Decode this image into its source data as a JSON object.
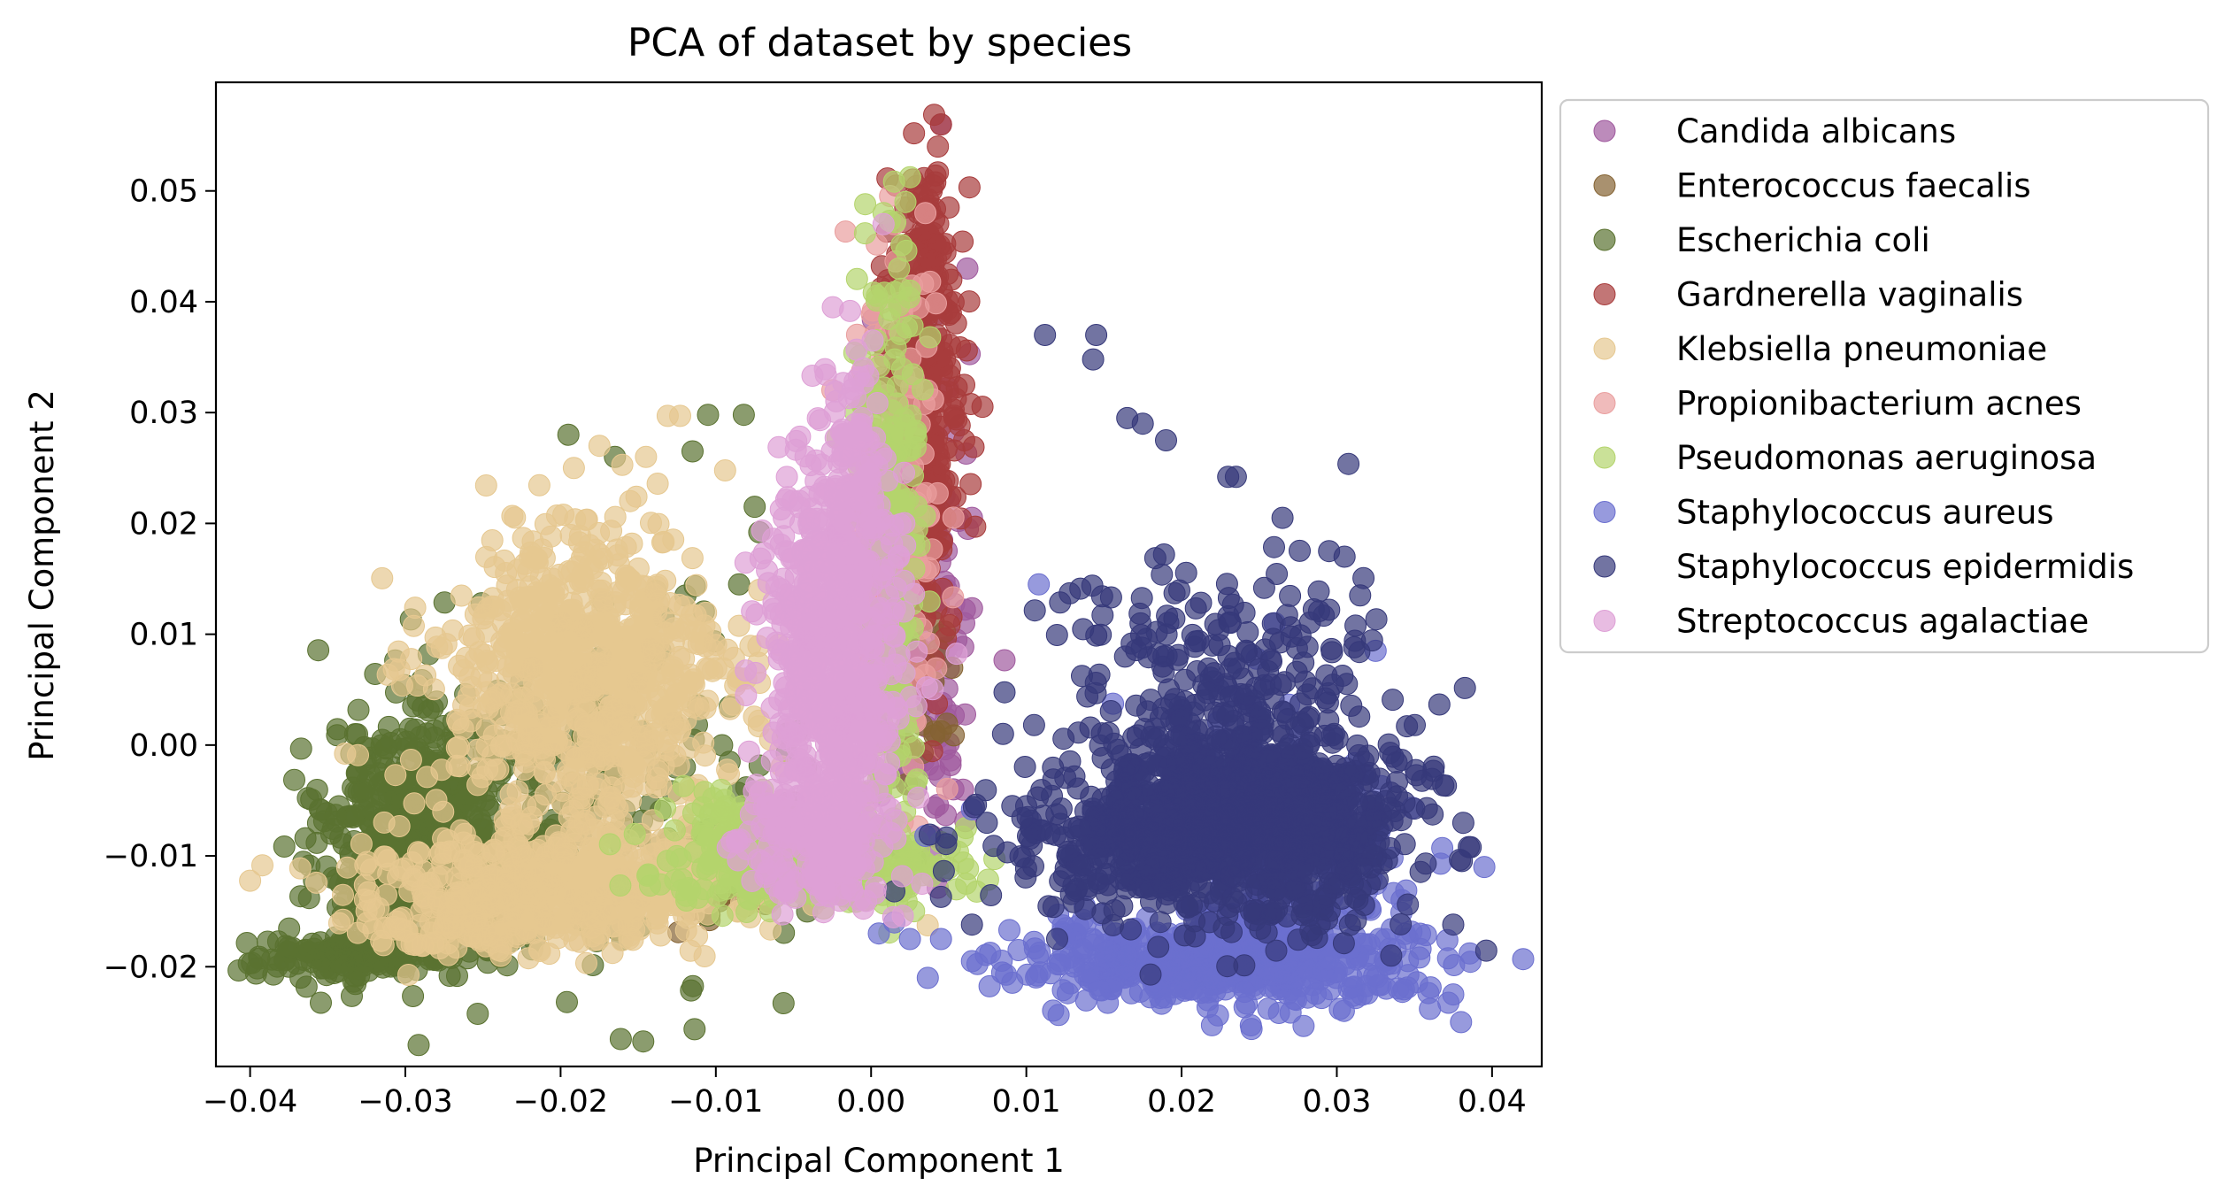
{
  "chart_data": {
    "type": "scatter",
    "title": "PCA of dataset by species",
    "xlabel": "Principal Component 1",
    "ylabel": "Principal Component 2",
    "xlim": [
      -0.0422,
      0.0432
    ],
    "ylim": [
      -0.029,
      0.0598
    ],
    "xticks": [
      -0.04,
      -0.03,
      -0.02,
      -0.01,
      0.0,
      0.01,
      0.02,
      0.03,
      0.04
    ],
    "xtick_labels": [
      "−0.04",
      "−0.03",
      "−0.02",
      "−0.01",
      "0.00",
      "0.01",
      "0.02",
      "0.03",
      "0.04"
    ],
    "yticks": [
      -0.02,
      -0.01,
      0.0,
      0.01,
      0.02,
      0.03,
      0.04,
      0.05
    ],
    "ytick_labels": [
      "−0.02",
      "−0.01",
      "0.00",
      "0.01",
      "0.02",
      "0.03",
      "0.04",
      "0.05"
    ],
    "grid": false,
    "legend_position": "outside-right-top",
    "marker_alpha": 0.7,
    "series": [
      {
        "name": "Candida albicans",
        "color": "#a05a9e",
        "clusters": [
          {
            "c": [
              0.0035,
              0.015
            ],
            "sd": [
              0.0014,
              0.012
            ],
            "n": 110
          },
          {
            "c": [
              0.0028,
              0.003
            ],
            "sd": [
              0.0018,
              0.006
            ],
            "n": 40
          }
        ],
        "points": [
          [
            0.0045,
            0.056
          ],
          [
            0.0062,
            0.043
          ],
          [
            0.0065,
            0.0205
          ],
          [
            0.0053,
            -0.004
          ],
          [
            0.0055,
            0.0095
          ],
          [
            0.006,
            0.011
          ]
        ]
      },
      {
        "name": "Enterococcus faecalis",
        "color": "#846232",
        "clusters": [
          {
            "c": [
              -0.0095,
              -0.013
            ],
            "sd": [
              0.0025,
              0.0015
            ],
            "n": 30
          },
          {
            "c": [
              0.0032,
              0.005
            ],
            "sd": [
              0.0012,
              0.004
            ],
            "n": 35
          }
        ],
        "points": [
          [
            -0.0112,
            -0.0133
          ],
          [
            -0.0095,
            -0.0134
          ],
          [
            0.0028,
            0.0065
          ],
          [
            0.0035,
            0.0075
          ]
        ]
      },
      {
        "name": "Escherichia coli",
        "color": "#5a7230",
        "clusters": [
          {
            "c": [
              -0.0285,
              -0.009
            ],
            "sd": [
              0.0032,
              0.0055
            ],
            "n": 620
          },
          {
            "c": [
              -0.033,
              -0.019
            ],
            "sd": [
              0.0035,
              0.001
            ],
            "n": 140
          },
          {
            "c": [
              -0.019,
              -0.005
            ],
            "sd": [
              0.0075,
              0.008
            ],
            "n": 240
          }
        ],
        "points": [
          [
            -0.0385,
            -0.0207
          ],
          [
            -0.0375,
            -0.02
          ],
          [
            -0.0195,
            0.028
          ],
          [
            -0.0105,
            0.0298
          ],
          [
            -0.0082,
            0.0298
          ],
          [
            -0.0115,
            0.0265
          ],
          [
            -0.0075,
            0.0215
          ],
          [
            -0.0285,
            0.0082
          ],
          [
            -0.0295,
            0.0035
          ],
          [
            -0.0355,
            -0.0058
          ],
          [
            -0.0345,
            -0.0063
          ],
          [
            -0.0362,
            -0.0138
          ],
          [
            -0.0085,
            0.0145
          ],
          [
            -0.0072,
            0.0192
          ],
          [
            -0.0165,
            0.026
          ]
        ]
      },
      {
        "name": "Gardnerella vaginalis",
        "color": "#a83c3c",
        "clusters": [
          {
            "c": [
              0.0032,
              0.027
            ],
            "sd": [
              0.0013,
              0.009
            ],
            "n": 380
          },
          {
            "c": [
              0.0035,
              0.044
            ],
            "sd": [
              0.0009,
              0.0045
            ],
            "n": 80
          }
        ],
        "points": [
          [
            0.0045,
            0.056
          ],
          [
            0.0043,
            0.054
          ],
          [
            0.004,
            0.0505
          ],
          [
            0.005,
            0.0485
          ],
          [
            0.006,
            0.0325
          ],
          [
            0.006,
            0.0275
          ],
          [
            0.0022,
            0.0485
          ],
          [
            0.0038,
            0.0482
          ]
        ]
      },
      {
        "name": "Klebsiella pneumoniae",
        "color": "#e6c890",
        "clusters": [
          {
            "c": [
              -0.0185,
              0.006
            ],
            "sd": [
              0.0048,
              0.0068
            ],
            "n": 780
          },
          {
            "c": [
              -0.0195,
              -0.0125
            ],
            "sd": [
              0.0062,
              0.0028
            ],
            "n": 560
          },
          {
            "c": [
              -0.0265,
              -0.0165
            ],
            "sd": [
              0.0028,
              0.0012
            ],
            "n": 80
          }
        ],
        "points": [
          [
            -0.0131,
            0.0297
          ],
          [
            -0.0123,
            0.0297
          ],
          [
            -0.0145,
            0.026
          ],
          [
            -0.0175,
            0.027
          ],
          [
            -0.0228,
            0.014
          ],
          [
            -0.0084,
            0.006
          ],
          [
            -0.0065,
            0.0005
          ],
          [
            -0.0072,
            0.014
          ],
          [
            -0.024,
            -0.0185
          ],
          [
            -0.028,
            -0.0178
          ]
        ]
      },
      {
        "name": "Propionibacterium acnes",
        "color": "#e99e9e",
        "clusters": [
          {
            "c": [
              0.0015,
              0.022
            ],
            "sd": [
              0.0016,
              0.012
            ],
            "n": 130
          }
        ],
        "points": [
          [
            0.0015,
            0.047
          ],
          [
            0.0035,
            0.048
          ],
          [
            0.002,
            0.039
          ],
          [
            0.0038,
            0.0418
          ],
          [
            -0.0015,
            0.014
          ],
          [
            0.0005,
            0.01
          ],
          [
            0.003,
            0.007
          ]
        ]
      },
      {
        "name": "Pseudomonas aeruginosa",
        "color": "#b4d46c",
        "clusters": [
          {
            "c": [
              0.0012,
              0.017
            ],
            "sd": [
              0.0012,
              0.013
            ],
            "n": 260
          },
          {
            "c": [
              -0.004,
              -0.0105
            ],
            "sd": [
              0.0045,
              0.0018
            ],
            "n": 300
          },
          {
            "c": [
              -0.0085,
              -0.0075
            ],
            "sd": [
              0.0022,
              0.0018
            ],
            "n": 60
          }
        ],
        "points": [
          [
            0.0008,
            0.048
          ],
          [
            0.0012,
            0.0473
          ],
          [
            0.0018,
            0.043
          ],
          [
            0.0025,
            0.041
          ],
          [
            0.0038,
            0.0368
          ],
          [
            0.004,
            -0.011
          ],
          [
            0.0045,
            -0.0108
          ],
          [
            -0.0065,
            -0.015
          ],
          [
            -0.0108,
            -0.013
          ]
        ]
      },
      {
        "name": "Staphylococcus aureus",
        "color": "#6b6fcf",
        "clusters": [
          {
            "c": [
              0.022,
              -0.0195
            ],
            "sd": [
              0.0065,
              0.0018
            ],
            "n": 500
          },
          {
            "c": [
              0.0275,
              -0.011
            ],
            "sd": [
              0.004,
              0.006
            ],
            "n": 180
          }
        ],
        "points": [
          [
            0.0015,
            -0.016
          ],
          [
            0.0025,
            -0.0175
          ],
          [
            0.0005,
            -0.017
          ],
          [
            0.0045,
            -0.0175
          ],
          [
            0.0065,
            -0.0195
          ],
          [
            0.0095,
            -0.0185
          ],
          [
            0.0375,
            -0.0225
          ],
          [
            0.038,
            -0.025
          ],
          [
            0.036,
            -0.0238
          ],
          [
            0.0395,
            -0.011
          ],
          [
            0.0325,
            0.0085
          ],
          [
            0.026,
            0.011
          ],
          [
            0.0108,
            0.0145
          ],
          [
            0.0065,
            -0.0058
          ],
          [
            0.0035,
            -0.0082
          ]
        ]
      },
      {
        "name": "Staphylococcus epidermidis",
        "color": "#36397a",
        "clusters": [
          {
            "c": [
              0.0245,
              -0.0075
            ],
            "sd": [
              0.0048,
              0.0042
            ],
            "n": 950
          },
          {
            "c": [
              0.0225,
              0.0035
            ],
            "sd": [
              0.0055,
              0.0062
            ],
            "n": 300
          },
          {
            "c": [
              0.014,
              -0.009
            ],
            "sd": [
              0.0035,
              0.003
            ],
            "n": 160
          }
        ],
        "points": [
          [
            0.0112,
            0.037
          ],
          [
            0.0143,
            0.0348
          ],
          [
            0.0145,
            0.037
          ],
          [
            0.0165,
            0.0295
          ],
          [
            0.0175,
            0.029
          ],
          [
            0.023,
            0.0242
          ],
          [
            0.0235,
            0.0242
          ],
          [
            0.0385,
            -0.0092
          ],
          [
            0.0375,
            -0.0162
          ],
          [
            0.0335,
            -0.019
          ],
          [
            0.0045,
            -0.0137
          ],
          [
            0.0015,
            -0.0132
          ],
          [
            0.0105,
            0.0018
          ],
          [
            0.0085,
            0.001
          ],
          [
            0.0065,
            -0.0162
          ],
          [
            0.018,
            -0.0207
          ],
          [
            0.0265,
            0.0205
          ],
          [
            0.0295,
            0.0175
          ],
          [
            0.0305,
            0.017
          ],
          [
            0.0315,
            0.0135
          ],
          [
            0.019,
            0.0275
          ]
        ]
      },
      {
        "name": "Streptococcus agalactiae",
        "color": "#dea0d6",
        "clusters": [
          {
            "c": [
              -0.0025,
              0.008
            ],
            "sd": [
              0.0022,
              0.0085
            ],
            "n": 700
          },
          {
            "c": [
              -0.0035,
              -0.0085
            ],
            "sd": [
              0.0025,
              0.0025
            ],
            "n": 200
          },
          {
            "c": [
              -0.001,
              0.026
            ],
            "sd": [
              0.0012,
              0.0045
            ],
            "n": 80
          }
        ],
        "points": [
          [
            0.0008,
            0.047
          ],
          [
            0.0001,
            0.0365
          ],
          [
            -0.0005,
            0.034
          ],
          [
            -0.003,
            0.0225
          ],
          [
            -0.0055,
            0.0175
          ]
        ]
      }
    ]
  }
}
